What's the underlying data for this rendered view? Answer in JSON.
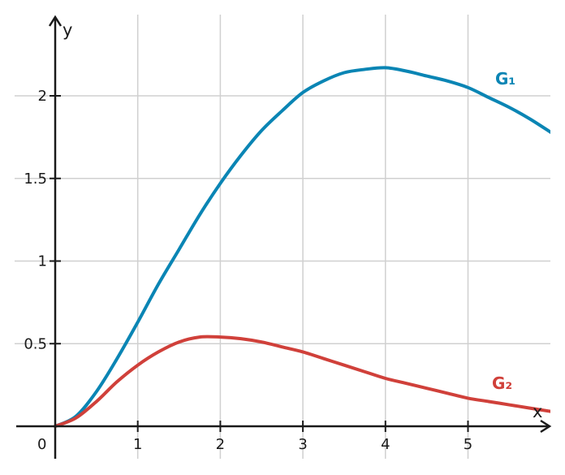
{
  "chart_data": {
    "type": "line",
    "title": "",
    "xlabel": "x",
    "ylabel": "y",
    "xlim": [
      -0.5,
      6.0
    ],
    "ylim": [
      -0.18,
      2.5
    ],
    "grid": true,
    "origin_label": "0",
    "x_ticks": [
      1,
      2,
      3,
      4,
      5
    ],
    "x_tick_labels": [
      "1",
      "2",
      "3",
      "4",
      "5"
    ],
    "y_ticks": [
      0.5,
      1,
      1.5,
      2
    ],
    "y_tick_labels": [
      "0.5",
      "1",
      "1.5",
      "2"
    ],
    "series": [
      {
        "name": "G₁",
        "color": "#0a85b4",
        "x": [
          0,
          0.25,
          0.5,
          0.75,
          1,
          1.25,
          1.5,
          1.75,
          2,
          2.25,
          2.5,
          2.75,
          3,
          3.25,
          3.5,
          3.75,
          4,
          4.25,
          4.5,
          4.75,
          5,
          5.25,
          5.5,
          5.75,
          6
        ],
        "y": [
          0,
          0.06,
          0.21,
          0.41,
          0.63,
          0.86,
          1.07,
          1.28,
          1.47,
          1.64,
          1.79,
          1.91,
          2.02,
          2.09,
          2.14,
          2.16,
          2.17,
          2.15,
          2.12,
          2.09,
          2.05,
          1.99,
          1.93,
          1.86,
          1.78
        ]
      },
      {
        "name": "G₂",
        "color": "#d0403a",
        "x": [
          0,
          0.25,
          0.5,
          0.75,
          1,
          1.25,
          1.5,
          1.75,
          2,
          2.25,
          2.5,
          2.75,
          3,
          3.25,
          3.5,
          3.75,
          4,
          4.25,
          4.5,
          4.75,
          5,
          5.25,
          5.5,
          5.75,
          6
        ],
        "y": [
          0,
          0.05,
          0.15,
          0.27,
          0.37,
          0.45,
          0.51,
          0.54,
          0.54,
          0.53,
          0.51,
          0.48,
          0.45,
          0.41,
          0.37,
          0.33,
          0.29,
          0.26,
          0.23,
          0.2,
          0.17,
          0.15,
          0.13,
          0.11,
          0.09
        ]
      }
    ]
  }
}
